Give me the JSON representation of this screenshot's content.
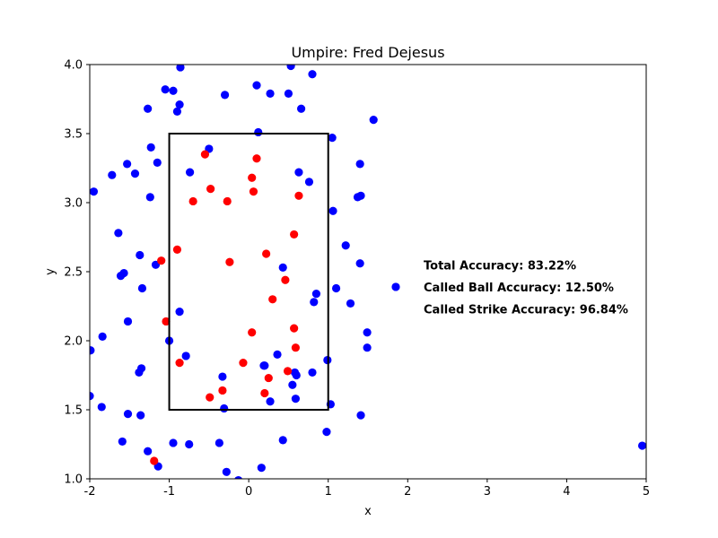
{
  "chart_data": {
    "type": "scatter",
    "title": "Umpire: Fred Dejesus",
    "xlabel": "x",
    "ylabel": "y",
    "xlim": [
      -2,
      5
    ],
    "ylim": [
      1.0,
      4.0
    ],
    "xticks": [
      "-2",
      "-1",
      "0",
      "1",
      "2",
      "3",
      "4",
      "5"
    ],
    "yticks": [
      "1.0",
      "1.5",
      "2.0",
      "2.5",
      "3.0",
      "3.5",
      "4.0"
    ],
    "grid": false,
    "strike_zone": {
      "x": [
        -1,
        1
      ],
      "y": [
        1.5,
        3.5
      ]
    },
    "annotations": [
      {
        "text": "Total Accuracy: 83.22%",
        "x": 2.2,
        "y": 2.55
      },
      {
        "text": "Called Ball Accuracy: 12.50%",
        "x": 2.2,
        "y": 2.39
      },
      {
        "text": "Called Strike Accuracy: 96.84%",
        "x": 2.2,
        "y": 2.23
      }
    ],
    "series": [
      {
        "color": "#0000ff",
        "points": [
          [
            -1.95,
            3.08
          ],
          [
            -1.72,
            3.2
          ],
          [
            -1.64,
            2.78
          ],
          [
            -1.53,
            3.28
          ],
          [
            -1.43,
            3.21
          ],
          [
            -1.37,
            2.62
          ],
          [
            -1.24,
            3.04
          ],
          [
            -1.23,
            3.4
          ],
          [
            -1.15,
            3.29
          ],
          [
            -1.27,
            3.68
          ],
          [
            -1.05,
            3.82
          ],
          [
            -0.95,
            3.81
          ],
          [
            -0.86,
            3.98
          ],
          [
            -0.87,
            3.71
          ],
          [
            -0.9,
            3.66
          ],
          [
            -0.74,
            3.22
          ],
          [
            -0.5,
            3.39
          ],
          [
            -0.3,
            3.78
          ],
          [
            0.1,
            3.85
          ],
          [
            0.27,
            3.79
          ],
          [
            0.5,
            3.79
          ],
          [
            0.53,
            3.99
          ],
          [
            0.8,
            3.93
          ],
          [
            0.66,
            3.68
          ],
          [
            0.12,
            3.51
          ],
          [
            0.63,
            3.22
          ],
          [
            0.76,
            3.15
          ],
          [
            1.05,
            3.47
          ],
          [
            1.06,
            2.94
          ],
          [
            1.37,
            3.04
          ],
          [
            1.41,
            3.05
          ],
          [
            1.4,
            3.28
          ],
          [
            1.57,
            3.6
          ],
          [
            1.22,
            2.69
          ],
          [
            1.4,
            2.56
          ],
          [
            1.1,
            2.38
          ],
          [
            1.28,
            2.27
          ],
          [
            1.49,
            2.06
          ],
          [
            1.49,
            1.95
          ],
          [
            1.85,
            2.39
          ],
          [
            -1.61,
            2.47
          ],
          [
            -1.57,
            2.49
          ],
          [
            -1.34,
            2.38
          ],
          [
            -1.17,
            2.55
          ],
          [
            -1.52,
            2.14
          ],
          [
            -1.99,
            1.93
          ],
          [
            -1.84,
            2.03
          ],
          [
            -0.87,
            2.21
          ],
          [
            -1.0,
            2.0
          ],
          [
            -0.79,
            1.89
          ],
          [
            -1.38,
            1.77
          ],
          [
            -1.35,
            1.8
          ],
          [
            -2.0,
            1.6
          ],
          [
            -1.85,
            1.52
          ],
          [
            -1.52,
            1.47
          ],
          [
            -1.36,
            1.46
          ],
          [
            -1.59,
            1.27
          ],
          [
            -1.27,
            1.2
          ],
          [
            -1.14,
            1.09
          ],
          [
            -0.95,
            1.26
          ],
          [
            -0.75,
            1.25
          ],
          [
            -0.37,
            1.26
          ],
          [
            -0.33,
            1.74
          ],
          [
            -0.31,
            1.51
          ],
          [
            -0.28,
            1.05
          ],
          [
            -0.13,
            0.99
          ],
          [
            0.16,
            1.08
          ],
          [
            0.2,
            1.82
          ],
          [
            0.27,
            1.56
          ],
          [
            0.36,
            1.9
          ],
          [
            0.43,
            2.53
          ],
          [
            0.55,
            1.68
          ],
          [
            0.58,
            1.77
          ],
          [
            0.6,
            1.75
          ],
          [
            0.59,
            1.58
          ],
          [
            0.43,
            1.28
          ],
          [
            0.8,
            1.77
          ],
          [
            0.82,
            2.28
          ],
          [
            0.85,
            2.34
          ],
          [
            0.99,
            1.86
          ],
          [
            1.03,
            1.54
          ],
          [
            0.98,
            1.34
          ],
          [
            1.41,
            1.46
          ],
          [
            4.95,
            1.24
          ],
          [
            0.19,
            1.82
          ]
        ]
      },
      {
        "color": "#ff0000",
        "points": [
          [
            -0.55,
            3.35
          ],
          [
            -0.48,
            3.1
          ],
          [
            -0.7,
            3.01
          ],
          [
            -0.27,
            3.01
          ],
          [
            0.04,
            3.18
          ],
          [
            0.06,
            3.08
          ],
          [
            0.1,
            3.32
          ],
          [
            0.63,
            3.05
          ],
          [
            -0.9,
            2.66
          ],
          [
            -0.24,
            2.57
          ],
          [
            0.22,
            2.63
          ],
          [
            0.57,
            2.77
          ],
          [
            0.46,
            2.44
          ],
          [
            0.3,
            2.3
          ],
          [
            -1.1,
            2.58
          ],
          [
            -1.04,
            2.14
          ],
          [
            0.04,
            2.06
          ],
          [
            0.57,
            2.09
          ],
          [
            0.59,
            1.95
          ],
          [
            -0.87,
            1.84
          ],
          [
            -0.07,
            1.84
          ],
          [
            0.49,
            1.78
          ],
          [
            0.25,
            1.73
          ],
          [
            -0.33,
            1.64
          ],
          [
            -0.49,
            1.59
          ],
          [
            0.2,
            1.62
          ],
          [
            -1.19,
            1.13
          ]
        ]
      }
    ]
  }
}
